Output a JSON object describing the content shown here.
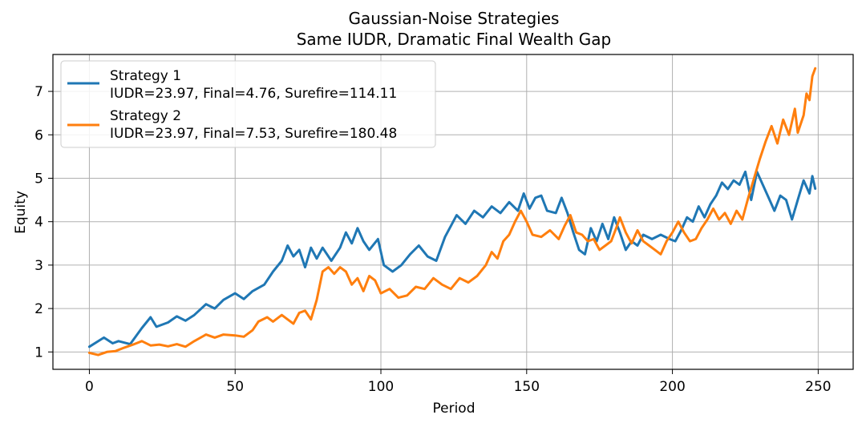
{
  "chart_data": {
    "type": "line",
    "title": "Gaussian-Noise Strategies",
    "subtitle": "Same IUDR, Dramatic Final Wealth Gap",
    "xlabel": "Period",
    "ylabel": "Equity",
    "xlim": [
      -12.5,
      262
    ],
    "ylim": [
      0.6,
      7.85
    ],
    "xticks": [
      0,
      50,
      100,
      150,
      200,
      250
    ],
    "yticks": [
      1,
      2,
      3,
      4,
      5,
      6,
      7
    ],
    "grid": true,
    "legend_position": "upper-left",
    "series": [
      {
        "name": "Strategy 1",
        "detail": "IUDR=23.97, Final=4.76, Surefire=114.11",
        "color": "#1f77b4",
        "points": [
          [
            0,
            1.12
          ],
          [
            5,
            1.33
          ],
          [
            8,
            1.2
          ],
          [
            10,
            1.25
          ],
          [
            14,
            1.18
          ],
          [
            18,
            1.55
          ],
          [
            21,
            1.8
          ],
          [
            23,
            1.58
          ],
          [
            27,
            1.68
          ],
          [
            30,
            1.82
          ],
          [
            33,
            1.72
          ],
          [
            36,
            1.85
          ],
          [
            40,
            2.1
          ],
          [
            43,
            2.0
          ],
          [
            46,
            2.2
          ],
          [
            50,
            2.35
          ],
          [
            53,
            2.22
          ],
          [
            56,
            2.4
          ],
          [
            60,
            2.55
          ],
          [
            63,
            2.85
          ],
          [
            66,
            3.1
          ],
          [
            68,
            3.45
          ],
          [
            70,
            3.2
          ],
          [
            72,
            3.35
          ],
          [
            74,
            2.95
          ],
          [
            76,
            3.4
          ],
          [
            78,
            3.15
          ],
          [
            80,
            3.4
          ],
          [
            83,
            3.1
          ],
          [
            86,
            3.4
          ],
          [
            88,
            3.75
          ],
          [
            90,
            3.5
          ],
          [
            92,
            3.85
          ],
          [
            94,
            3.55
          ],
          [
            96,
            3.35
          ],
          [
            99,
            3.6
          ],
          [
            101,
            3.0
          ],
          [
            104,
            2.85
          ],
          [
            107,
            3.0
          ],
          [
            110,
            3.25
          ],
          [
            113,
            3.45
          ],
          [
            116,
            3.2
          ],
          [
            119,
            3.1
          ],
          [
            122,
            3.65
          ],
          [
            124,
            3.9
          ],
          [
            126,
            4.15
          ],
          [
            129,
            3.95
          ],
          [
            132,
            4.25
          ],
          [
            135,
            4.1
          ],
          [
            138,
            4.35
          ],
          [
            141,
            4.2
          ],
          [
            144,
            4.45
          ],
          [
            147,
            4.25
          ],
          [
            149,
            4.65
          ],
          [
            151,
            4.3
          ],
          [
            153,
            4.55
          ],
          [
            155,
            4.6
          ],
          [
            157,
            4.25
          ],
          [
            160,
            4.2
          ],
          [
            162,
            4.55
          ],
          [
            164,
            4.2
          ],
          [
            166,
            3.75
          ],
          [
            168,
            3.35
          ],
          [
            170,
            3.25
          ],
          [
            172,
            3.85
          ],
          [
            174,
            3.55
          ],
          [
            176,
            3.95
          ],
          [
            178,
            3.6
          ],
          [
            180,
            4.1
          ],
          [
            182,
            3.75
          ],
          [
            184,
            3.35
          ],
          [
            186,
            3.55
          ],
          [
            188,
            3.45
          ],
          [
            190,
            3.7
          ],
          [
            193,
            3.6
          ],
          [
            196,
            3.7
          ],
          [
            199,
            3.6
          ],
          [
            201,
            3.55
          ],
          [
            203,
            3.8
          ],
          [
            205,
            4.1
          ],
          [
            207,
            4.0
          ],
          [
            209,
            4.35
          ],
          [
            211,
            4.1
          ],
          [
            213,
            4.4
          ],
          [
            215,
            4.6
          ],
          [
            217,
            4.9
          ],
          [
            219,
            4.75
          ],
          [
            221,
            4.95
          ],
          [
            223,
            4.85
          ],
          [
            225,
            5.15
          ],
          [
            227,
            4.5
          ],
          [
            229,
            5.15
          ],
          [
            231,
            4.85
          ],
          [
            233,
            4.55
          ],
          [
            235,
            4.25
          ],
          [
            237,
            4.6
          ],
          [
            239,
            4.5
          ],
          [
            241,
            4.05
          ],
          [
            243,
            4.5
          ],
          [
            245,
            4.95
          ],
          [
            247,
            4.65
          ],
          [
            248,
            5.05
          ],
          [
            249,
            4.76
          ]
        ]
      },
      {
        "name": "Strategy 2",
        "detail": "IUDR=23.97, Final=7.53, Surefire=180.48",
        "color": "#ff7f0e",
        "points": [
          [
            0,
            0.98
          ],
          [
            3,
            0.93
          ],
          [
            6,
            1.0
          ],
          [
            9,
            1.02
          ],
          [
            12,
            1.1
          ],
          [
            15,
            1.17
          ],
          [
            18,
            1.25
          ],
          [
            21,
            1.15
          ],
          [
            24,
            1.17
          ],
          [
            27,
            1.13
          ],
          [
            30,
            1.18
          ],
          [
            33,
            1.12
          ],
          [
            36,
            1.25
          ],
          [
            40,
            1.4
          ],
          [
            43,
            1.33
          ],
          [
            46,
            1.4
          ],
          [
            50,
            1.38
          ],
          [
            53,
            1.35
          ],
          [
            56,
            1.5
          ],
          [
            58,
            1.7
          ],
          [
            61,
            1.8
          ],
          [
            63,
            1.7
          ],
          [
            66,
            1.85
          ],
          [
            68,
            1.75
          ],
          [
            70,
            1.65
          ],
          [
            72,
            1.9
          ],
          [
            74,
            1.95
          ],
          [
            76,
            1.75
          ],
          [
            78,
            2.2
          ],
          [
            80,
            2.85
          ],
          [
            82,
            2.95
          ],
          [
            84,
            2.8
          ],
          [
            86,
            2.95
          ],
          [
            88,
            2.85
          ],
          [
            90,
            2.55
          ],
          [
            92,
            2.7
          ],
          [
            94,
            2.4
          ],
          [
            96,
            2.75
          ],
          [
            98,
            2.65
          ],
          [
            100,
            2.35
          ],
          [
            103,
            2.45
          ],
          [
            106,
            2.25
          ],
          [
            109,
            2.3
          ],
          [
            112,
            2.5
          ],
          [
            115,
            2.45
          ],
          [
            118,
            2.7
          ],
          [
            121,
            2.55
          ],
          [
            124,
            2.45
          ],
          [
            127,
            2.7
          ],
          [
            130,
            2.6
          ],
          [
            133,
            2.75
          ],
          [
            136,
            3.0
          ],
          [
            138,
            3.3
          ],
          [
            140,
            3.15
          ],
          [
            142,
            3.55
          ],
          [
            144,
            3.7
          ],
          [
            146,
            4.0
          ],
          [
            148,
            4.25
          ],
          [
            150,
            4.0
          ],
          [
            152,
            3.7
          ],
          [
            155,
            3.65
          ],
          [
            158,
            3.8
          ],
          [
            161,
            3.6
          ],
          [
            163,
            3.9
          ],
          [
            165,
            4.15
          ],
          [
            167,
            3.75
          ],
          [
            169,
            3.7
          ],
          [
            171,
            3.55
          ],
          [
            173,
            3.6
          ],
          [
            175,
            3.35
          ],
          [
            177,
            3.45
          ],
          [
            179,
            3.55
          ],
          [
            181,
            3.9
          ],
          [
            182,
            4.1
          ],
          [
            184,
            3.75
          ],
          [
            186,
            3.5
          ],
          [
            188,
            3.8
          ],
          [
            190,
            3.55
          ],
          [
            192,
            3.45
          ],
          [
            194,
            3.35
          ],
          [
            196,
            3.25
          ],
          [
            198,
            3.55
          ],
          [
            200,
            3.75
          ],
          [
            202,
            4.0
          ],
          [
            204,
            3.75
          ],
          [
            206,
            3.55
          ],
          [
            208,
            3.6
          ],
          [
            210,
            3.85
          ],
          [
            212,
            4.05
          ],
          [
            214,
            4.3
          ],
          [
            216,
            4.05
          ],
          [
            218,
            4.2
          ],
          [
            220,
            3.95
          ],
          [
            222,
            4.25
          ],
          [
            224,
            4.05
          ],
          [
            226,
            4.55
          ],
          [
            228,
            5.0
          ],
          [
            230,
            5.45
          ],
          [
            232,
            5.85
          ],
          [
            234,
            6.2
          ],
          [
            236,
            5.8
          ],
          [
            238,
            6.35
          ],
          [
            240,
            6.0
          ],
          [
            242,
            6.6
          ],
          [
            243,
            6.05
          ],
          [
            245,
            6.45
          ],
          [
            246,
            6.95
          ],
          [
            247,
            6.8
          ],
          [
            248,
            7.35
          ],
          [
            249,
            7.53
          ]
        ]
      }
    ]
  }
}
